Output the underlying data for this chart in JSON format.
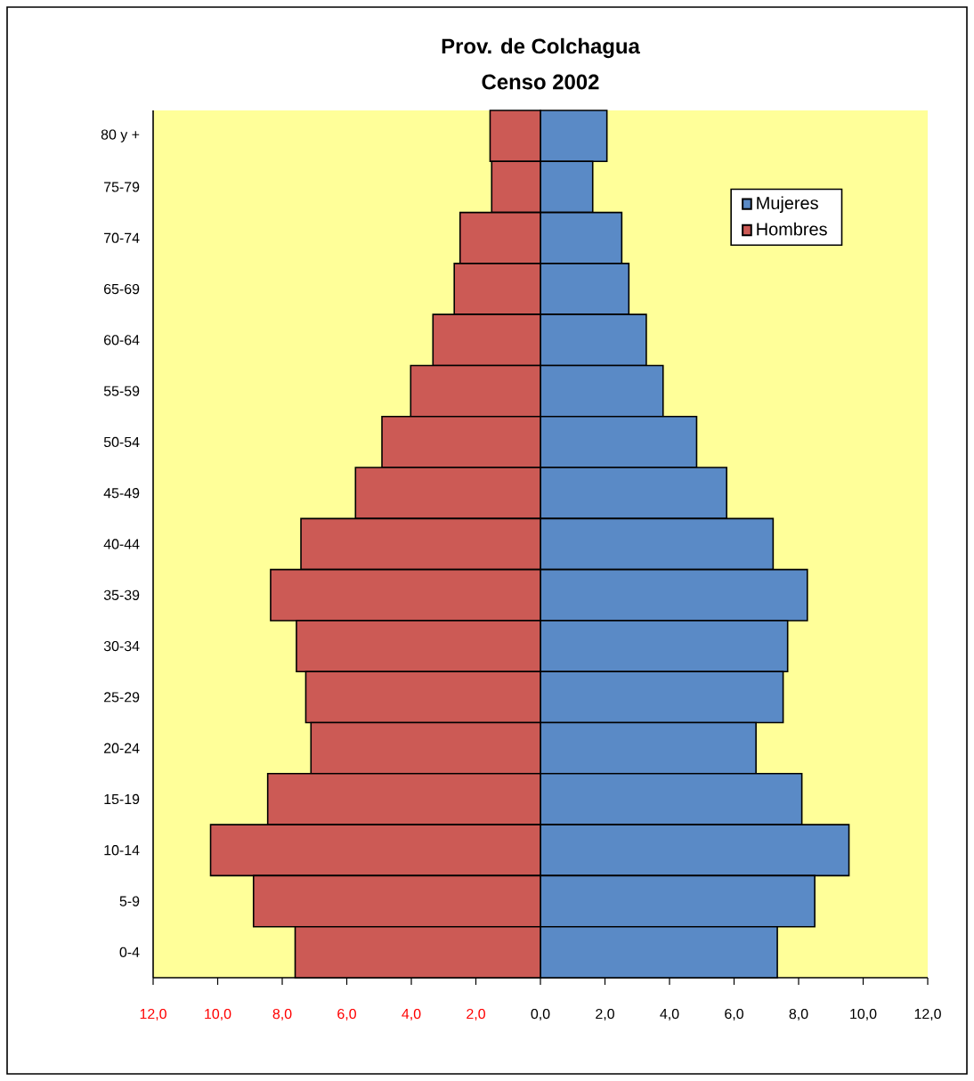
{
  "chart_data": {
    "type": "bar",
    "orientation": "horizontal",
    "title": "Prov. de Colchagua",
    "subtitle": "Censo 2002",
    "categories": [
      "80 y +",
      "75-79",
      "70-74",
      "65-69",
      "60-64",
      "55-59",
      "50-54",
      "45-49",
      "40-44",
      "35-39",
      "30-34",
      "25-29",
      "20-24",
      "15-19",
      "10-14",
      "5-9",
      "0-4"
    ],
    "series": [
      {
        "name": "Mujeres",
        "color": "#5a8ac6",
        "values": [
          2.06,
          1.62,
          2.52,
          2.74,
          3.28,
          3.8,
          4.84,
          5.77,
          7.21,
          8.27,
          7.66,
          7.52,
          6.68,
          8.1,
          9.56,
          8.5,
          7.34
        ]
      },
      {
        "name": "Hombres",
        "color": "#cc5a55",
        "values": [
          -1.56,
          -1.51,
          -2.49,
          -2.67,
          -3.33,
          -4.02,
          -4.91,
          -5.73,
          -7.42,
          -8.36,
          -7.56,
          -7.27,
          -7.11,
          -8.45,
          -10.22,
          -8.89,
          -7.6
        ]
      }
    ],
    "xlim": [
      -12,
      12
    ],
    "xticks": [
      {
        "value": -12,
        "label": "12,0"
      },
      {
        "value": -10,
        "label": "10,0"
      },
      {
        "value": -8,
        "label": "8,0"
      },
      {
        "value": -6,
        "label": "6,0"
      },
      {
        "value": -4,
        "label": "4,0"
      },
      {
        "value": -2,
        "label": "2,0"
      },
      {
        "value": 0,
        "label": "0,0"
      },
      {
        "value": 2,
        "label": "2,0"
      },
      {
        "value": 4,
        "label": "4,0"
      },
      {
        "value": 6,
        "label": "6,0"
      },
      {
        "value": 8,
        "label": "8,0"
      },
      {
        "value": 10,
        "label": "10,0"
      },
      {
        "value": 12,
        "label": "12,0"
      }
    ],
    "stacked": true,
    "legend": "top right",
    "grid": false
  }
}
